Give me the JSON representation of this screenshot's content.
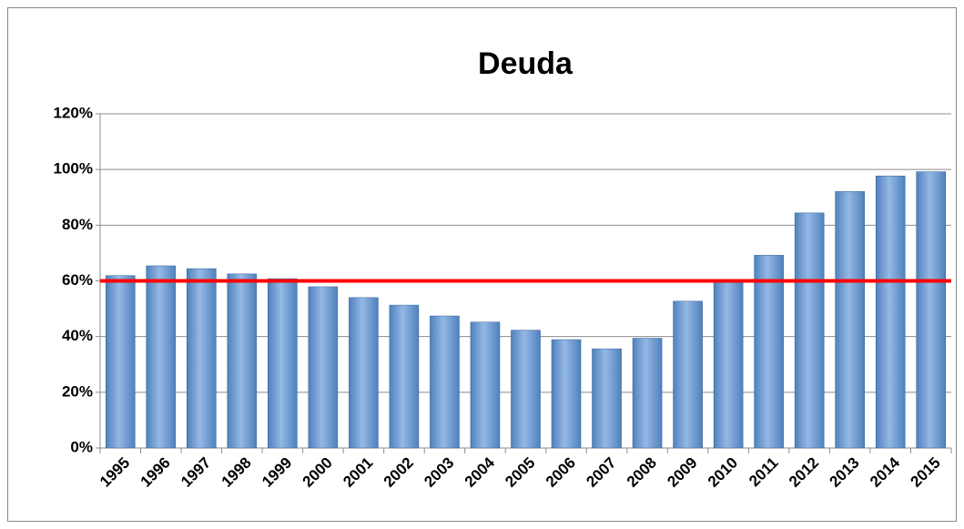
{
  "chart_data": {
    "type": "bar",
    "title": "Deuda",
    "categories": [
      "1995",
      "1996",
      "1997",
      "1998",
      "1999",
      "2000",
      "2001",
      "2002",
      "2003",
      "2004",
      "2005",
      "2006",
      "2007",
      "2008",
      "2009",
      "2010",
      "2011",
      "2012",
      "2013",
      "2014",
      "2015"
    ],
    "values": [
      61.9,
      65.4,
      64.4,
      62.5,
      60.8,
      57.9,
      54.0,
      51.3,
      47.4,
      45.2,
      42.3,
      38.9,
      35.6,
      39.4,
      52.7,
      60.1,
      69.2,
      84.4,
      92.1,
      97.7,
      99.2
    ],
    "color": "#4f81bd",
    "ylim": [
      0,
      120
    ],
    "yticks": [
      {
        "value": 0,
        "label": "0%"
      },
      {
        "value": 20,
        "label": "20%"
      },
      {
        "value": 40,
        "label": "40%"
      },
      {
        "value": 60,
        "label": "60%"
      },
      {
        "value": 80,
        "label": "80%"
      },
      {
        "value": 100,
        "label": "100%"
      },
      {
        "value": 120,
        "label": "120%"
      }
    ],
    "grid": true,
    "reference_line": {
      "value": 60,
      "color": "#ff0000"
    }
  }
}
